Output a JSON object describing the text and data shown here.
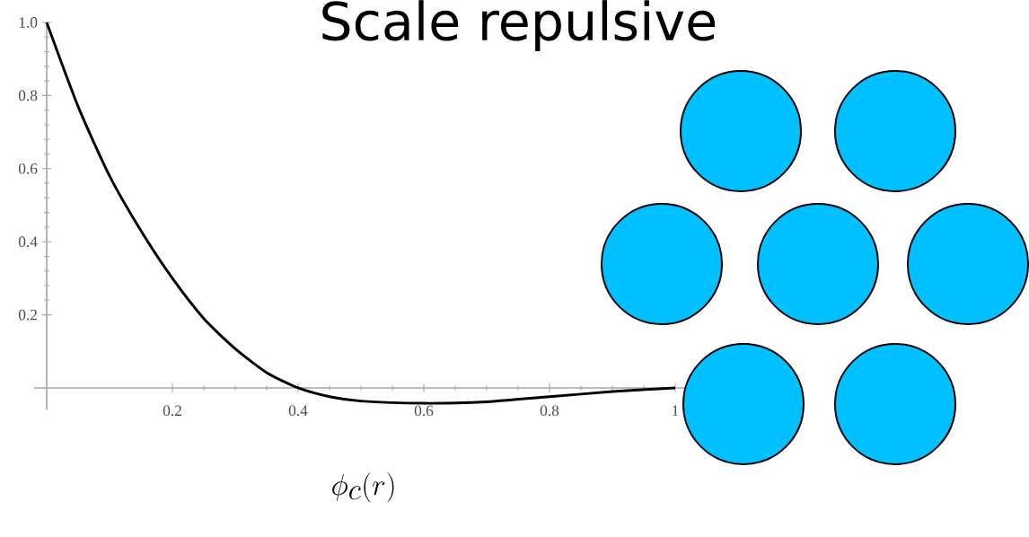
{
  "chart_data": {
    "type": "line",
    "title": "Scale repulsive",
    "xlabel": "\\phi_c(r)",
    "x": [
      0,
      0.05,
      0.1,
      0.15,
      0.2,
      0.25,
      0.3,
      0.35,
      0.4,
      0.45,
      0.5,
      0.6,
      0.7,
      0.8,
      0.9,
      1.0
    ],
    "values": [
      1.0,
      0.77,
      0.58,
      0.43,
      0.3,
      0.19,
      0.107,
      0.042,
      0,
      -0.024,
      -0.036,
      -0.042,
      -0.038,
      -0.024,
      -0.01,
      0
    ],
    "color": "#000000",
    "xlim": [
      -0.02,
      1.05
    ],
    "ylim": [
      -0.06,
      1.0
    ],
    "xticks": [
      0.2,
      0.4,
      0.6,
      0.8,
      1
    ],
    "yticks": [
      0.2,
      0.4,
      0.6,
      0.8,
      {
        "value": 1,
        "label": "1.0"
      }
    ]
  }
}
